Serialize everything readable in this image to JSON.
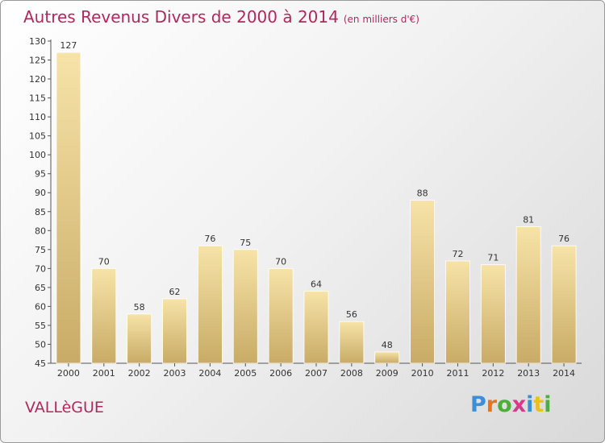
{
  "title": "Autres Revenus Divers de 2000 à 2014",
  "unit": "(en milliers d'€)",
  "commune": "VALLèGUE",
  "logo": {
    "letters": [
      "P",
      "r",
      "o",
      "x",
      "i",
      "t",
      "i"
    ],
    "colors": [
      "#3a8fd6",
      "#e8751a",
      "#4caf3a",
      "#d83a8a",
      "#3a8fd6",
      "#e8c21a",
      "#4caf3a"
    ]
  },
  "colors": {
    "title": "#b0285c",
    "bar_light": "#f7e3a8",
    "bar_dark": "#c8ab66"
  },
  "chart_data": {
    "type": "bar",
    "title": "Autres Revenus Divers de 2000 à 2014",
    "xlabel": "",
    "ylabel": "",
    "categories": [
      "2000",
      "2001",
      "2002",
      "2003",
      "2004",
      "2005",
      "2006",
      "2007",
      "2008",
      "2009",
      "2010",
      "2011",
      "2012",
      "2013",
      "2014"
    ],
    "values": [
      127,
      70,
      58,
      62,
      76,
      75,
      70,
      64,
      56,
      48,
      88,
      72,
      71,
      81,
      76
    ],
    "ylim": [
      45,
      130
    ],
    "yticks": [
      45,
      50,
      55,
      60,
      65,
      70,
      75,
      80,
      85,
      90,
      95,
      100,
      105,
      110,
      115,
      120,
      125,
      130
    ],
    "grid": false,
    "legend": "none"
  }
}
